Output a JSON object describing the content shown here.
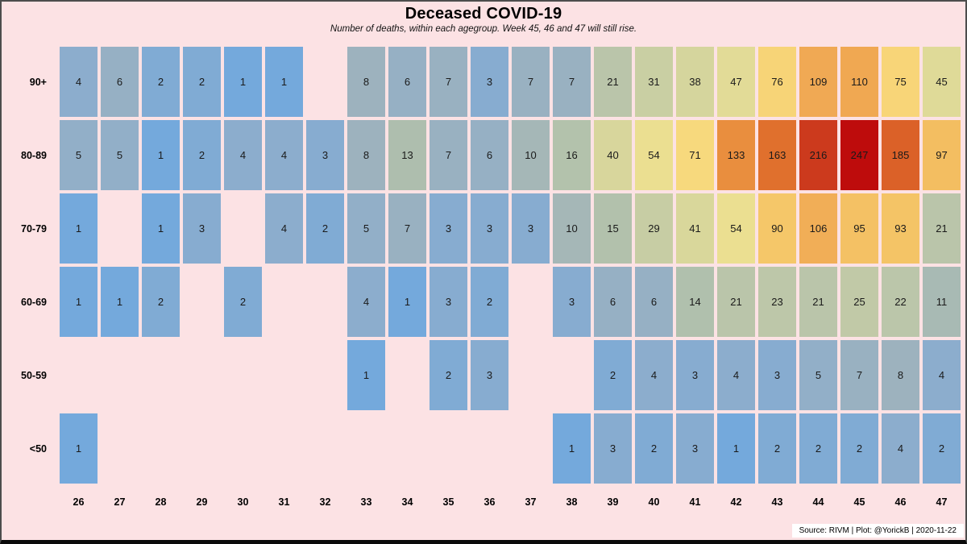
{
  "chart_data": {
    "type": "heatmap",
    "title": "Deceased COVID-19",
    "subtitle": "Number of deaths, within each agegroup. Week 45, 46 and 47 will still rise.",
    "x": [
      26,
      27,
      28,
      29,
      30,
      31,
      32,
      33,
      34,
      35,
      36,
      37,
      38,
      39,
      40,
      41,
      42,
      43,
      44,
      45,
      46,
      47
    ],
    "categories_y": [
      "90+",
      "80-89",
      "70-79",
      "60-69",
      "50-59",
      "<50"
    ],
    "series": [
      {
        "name": "90+",
        "values": [
          4,
          6,
          2,
          2,
          1,
          1,
          null,
          8,
          6,
          7,
          3,
          7,
          7,
          21,
          31,
          38,
          47,
          76,
          109,
          110,
          75,
          45
        ]
      },
      {
        "name": "80-89",
        "values": [
          5,
          5,
          1,
          2,
          4,
          4,
          3,
          8,
          13,
          7,
          6,
          10,
          16,
          40,
          54,
          71,
          133,
          163,
          216,
          247,
          185,
          97
        ]
      },
      {
        "name": "70-79",
        "values": [
          1,
          null,
          1,
          3,
          null,
          4,
          2,
          5,
          7,
          3,
          3,
          3,
          10,
          15,
          29,
          41,
          54,
          90,
          106,
          95,
          93,
          21
        ]
      },
      {
        "name": "60-69",
        "values": [
          1,
          1,
          2,
          null,
          2,
          null,
          null,
          4,
          1,
          3,
          2,
          null,
          3,
          6,
          6,
          14,
          21,
          23,
          21,
          25,
          22,
          11
        ]
      },
      {
        "name": "50-59",
        "values": [
          null,
          null,
          null,
          null,
          null,
          null,
          null,
          1,
          null,
          2,
          3,
          null,
          null,
          2,
          4,
          3,
          4,
          3,
          5,
          7,
          8,
          4
        ]
      },
      {
        "name": "<50",
        "values": [
          1,
          null,
          null,
          null,
          null,
          null,
          null,
          null,
          null,
          null,
          null,
          null,
          1,
          3,
          2,
          3,
          1,
          2,
          2,
          2,
          4,
          2
        ]
      }
    ],
    "color_scale": {
      "mode": "log",
      "domain_min": 1,
      "domain_max": 247,
      "stops": [
        {
          "t": 0.0,
          "color": "#74A9DC"
        },
        {
          "t": 0.25,
          "color": "#8CADCD"
        },
        {
          "t": 0.38,
          "color": "#9DB2BE"
        },
        {
          "t": 0.47,
          "color": "#AFBFAD"
        },
        {
          "t": 0.56,
          "color": "#BBC6AA"
        },
        {
          "t": 0.63,
          "color": "#CBD0A2"
        },
        {
          "t": 0.7,
          "color": "#E2DB97"
        },
        {
          "t": 0.745,
          "color": "#F2E28C"
        },
        {
          "t": 0.78,
          "color": "#F8D77A"
        },
        {
          "t": 0.825,
          "color": "#F4C365"
        },
        {
          "t": 0.86,
          "color": "#EFA14E"
        },
        {
          "t": 0.89,
          "color": "#E98C3D"
        },
        {
          "t": 0.925,
          "color": "#E0702D"
        },
        {
          "t": 0.95,
          "color": "#DA5F27"
        },
        {
          "t": 0.975,
          "color": "#CC3B1D"
        },
        {
          "t": 1.0,
          "color": "#BE0C0C"
        }
      ]
    },
    "footer": "Source: RIVM | Plot: @YorickB |  2020-11-22",
    "colors": {
      "background": "#FCE2E4",
      "cell_text": "#1A1A1A",
      "label_text": "#000000",
      "footer_bg": "#FFFFFF",
      "frame_border": "#4D4D4D",
      "frame_bottom": "#0A0A0A"
    },
    "layout": {
      "legend": "none",
      "grid": "off"
    }
  }
}
